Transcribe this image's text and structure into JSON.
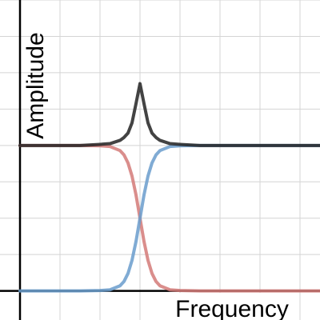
{
  "chart_data": {
    "type": "line",
    "x_label": "Frequency",
    "y_label": "Amplitude",
    "x": [
      0,
      0.5,
      1,
      1.5,
      2,
      2.25,
      2.5,
      2.6,
      2.7,
      2.8,
      2.9,
      3,
      3.1,
      3.2,
      3.3,
      3.4,
      3.5,
      3.75,
      4,
      4.5,
      5,
      5.5,
      6,
      6.5,
      7,
      7.5
    ],
    "series": [
      {
        "color": "#d47a78",
        "values": [
          4,
          4,
          4,
          4,
          3.99,
          3.97,
          3.86,
          3.74,
          3.52,
          3.16,
          2.64,
          2,
          1.36,
          0.84,
          0.48,
          0.26,
          0.14,
          0.03,
          0.01,
          0,
          0,
          0,
          0,
          0,
          0,
          0
        ]
      },
      {
        "color": "#6a9ccc",
        "values": [
          0,
          0,
          0,
          0,
          0.01,
          0.03,
          0.14,
          0.26,
          0.48,
          0.84,
          1.36,
          2,
          2.64,
          3.16,
          3.52,
          3.74,
          3.86,
          3.97,
          3.99,
          4,
          4,
          4,
          4,
          4,
          4,
          4
        ]
      },
      {
        "color": "#222222",
        "values": [
          4,
          4,
          4,
          4,
          4.03,
          4.05,
          4.14,
          4.22,
          4.34,
          4.62,
          5.15,
          5.7,
          5.15,
          4.62,
          4.34,
          4.22,
          4.14,
          4.05,
          4.03,
          4,
          4,
          4,
          4,
          4,
          4,
          4
        ]
      }
    ],
    "xlim": [
      -0.5,
      7.5
    ],
    "ylim": [
      -0.8,
      8
    ],
    "xticks": [
      1,
      2,
      3,
      4,
      5,
      6,
      7
    ],
    "yticks": [
      1,
      2,
      3,
      4,
      5,
      6,
      7,
      8
    ],
    "grid": true
  }
}
